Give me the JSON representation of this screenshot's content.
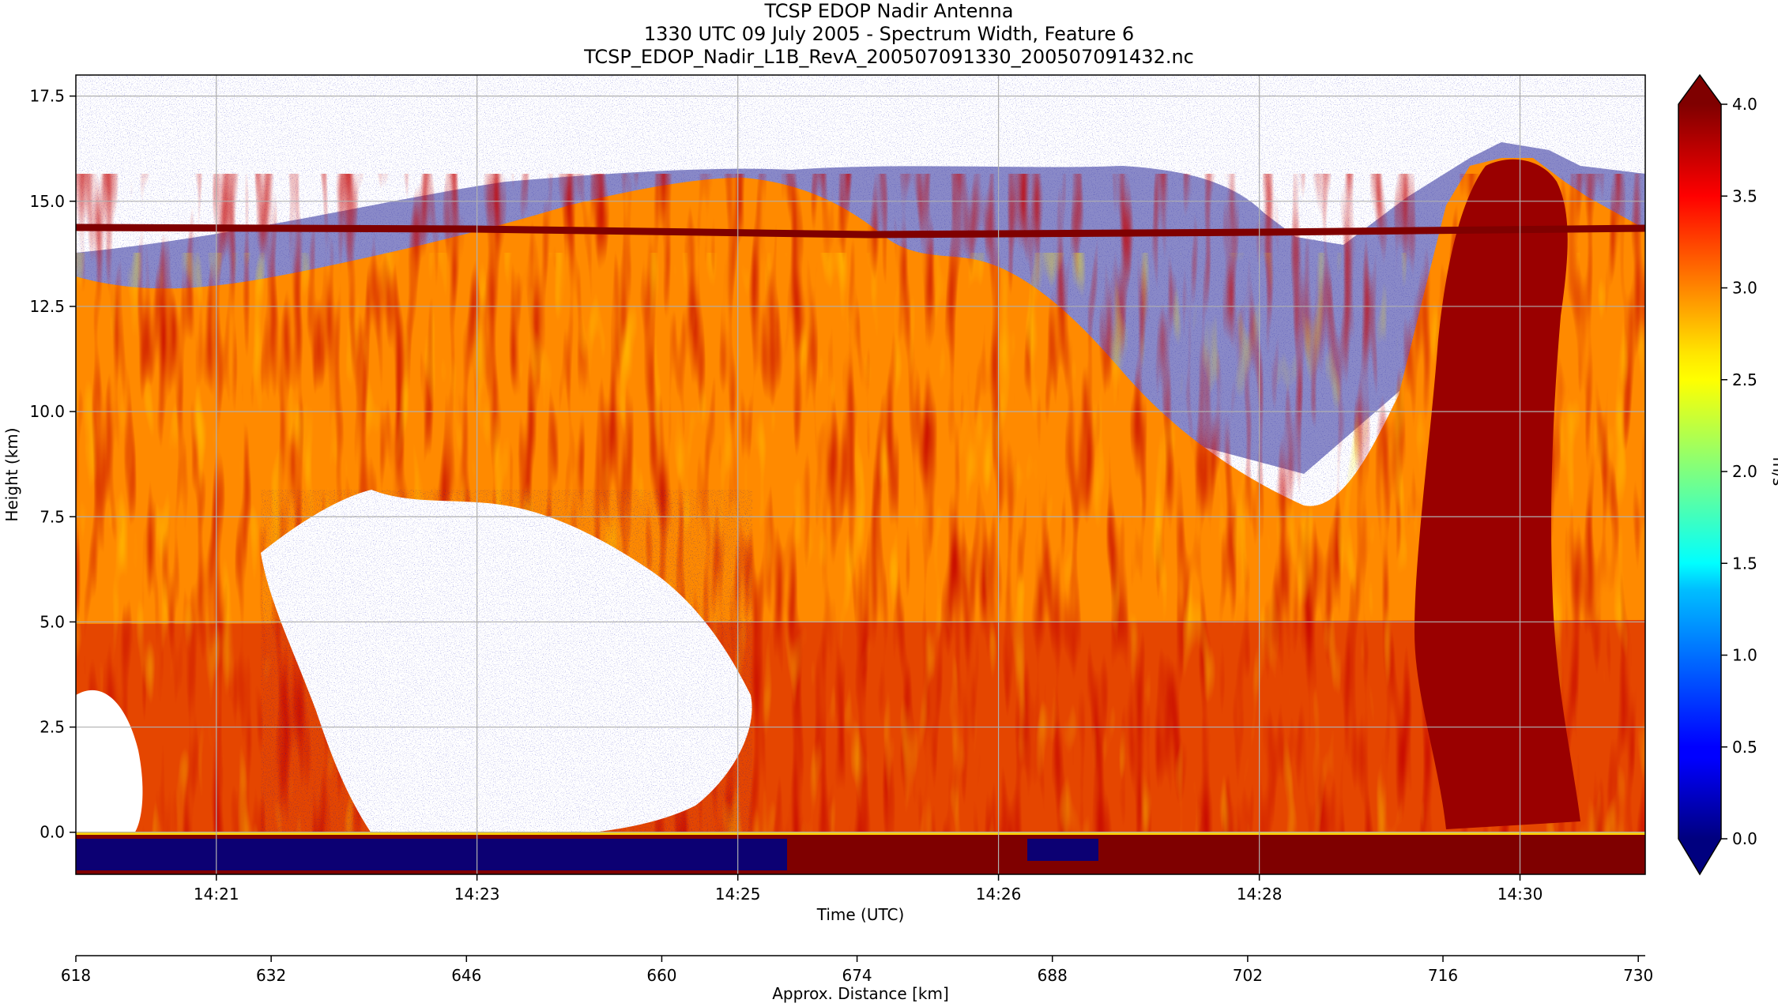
{
  "titles": {
    "line1": "TCSP EDOP Nadir Antenna",
    "line2": "1330 UTC 09 July 2005 - Spectrum Width, Feature 6",
    "line3": "TCSP_EDOP_Nadir_L1B_RevA_200507091330_200507091432.nc"
  },
  "chart_data": {
    "type": "heatmap",
    "title": "TCSP EDOP Nadir Antenna",
    "subtitle": "1330 UTC 09 July 2005 - Spectrum Width, Feature 6",
    "source_file": "TCSP_EDOP_Nadir_L1B_RevA_200507091330_200507091432.nc",
    "ylabel": "Height (km)",
    "xlabel": "Time (UTC)",
    "x2label": "Approx. Distance [km]",
    "ylim": [
      -1.0,
      18.0
    ],
    "yticks": [
      "0.0",
      "2.5",
      "5.0",
      "7.5",
      "10.0",
      "12.5",
      "15.0",
      "17.5"
    ],
    "yticks_values": [
      0.0,
      2.5,
      5.0,
      7.5,
      10.0,
      12.5,
      15.0,
      17.5
    ],
    "xticks": [
      "14:21",
      "14:23",
      "14:25",
      "14:26",
      "14:28",
      "14:30"
    ],
    "x2ticks": [
      "618",
      "632",
      "646",
      "660",
      "674",
      "688",
      "702",
      "716",
      "730"
    ],
    "x2ticks_values": [
      618,
      632,
      646,
      660,
      674,
      688,
      702,
      716,
      730
    ],
    "x2lim": [
      618,
      730.5
    ],
    "grid": true,
    "colorbar": {
      "label": "m/s",
      "min": 0.0,
      "max": 4.0,
      "ticks": [
        "0.0",
        "0.5",
        "1.0",
        "1.5",
        "2.0",
        "2.5",
        "3.0",
        "3.5",
        "4.0"
      ],
      "colormap": "jet",
      "extend": "both",
      "under_color": "#00007f",
      "over_color": "#7f0000"
    },
    "features": [
      {
        "name": "aircraft-altitude-line",
        "height_km": 14.3,
        "value": 4.0
      },
      {
        "name": "surface-return",
        "height_km_range": [
          -1.0,
          0.0
        ],
        "value": 4.0
      }
    ]
  }
}
